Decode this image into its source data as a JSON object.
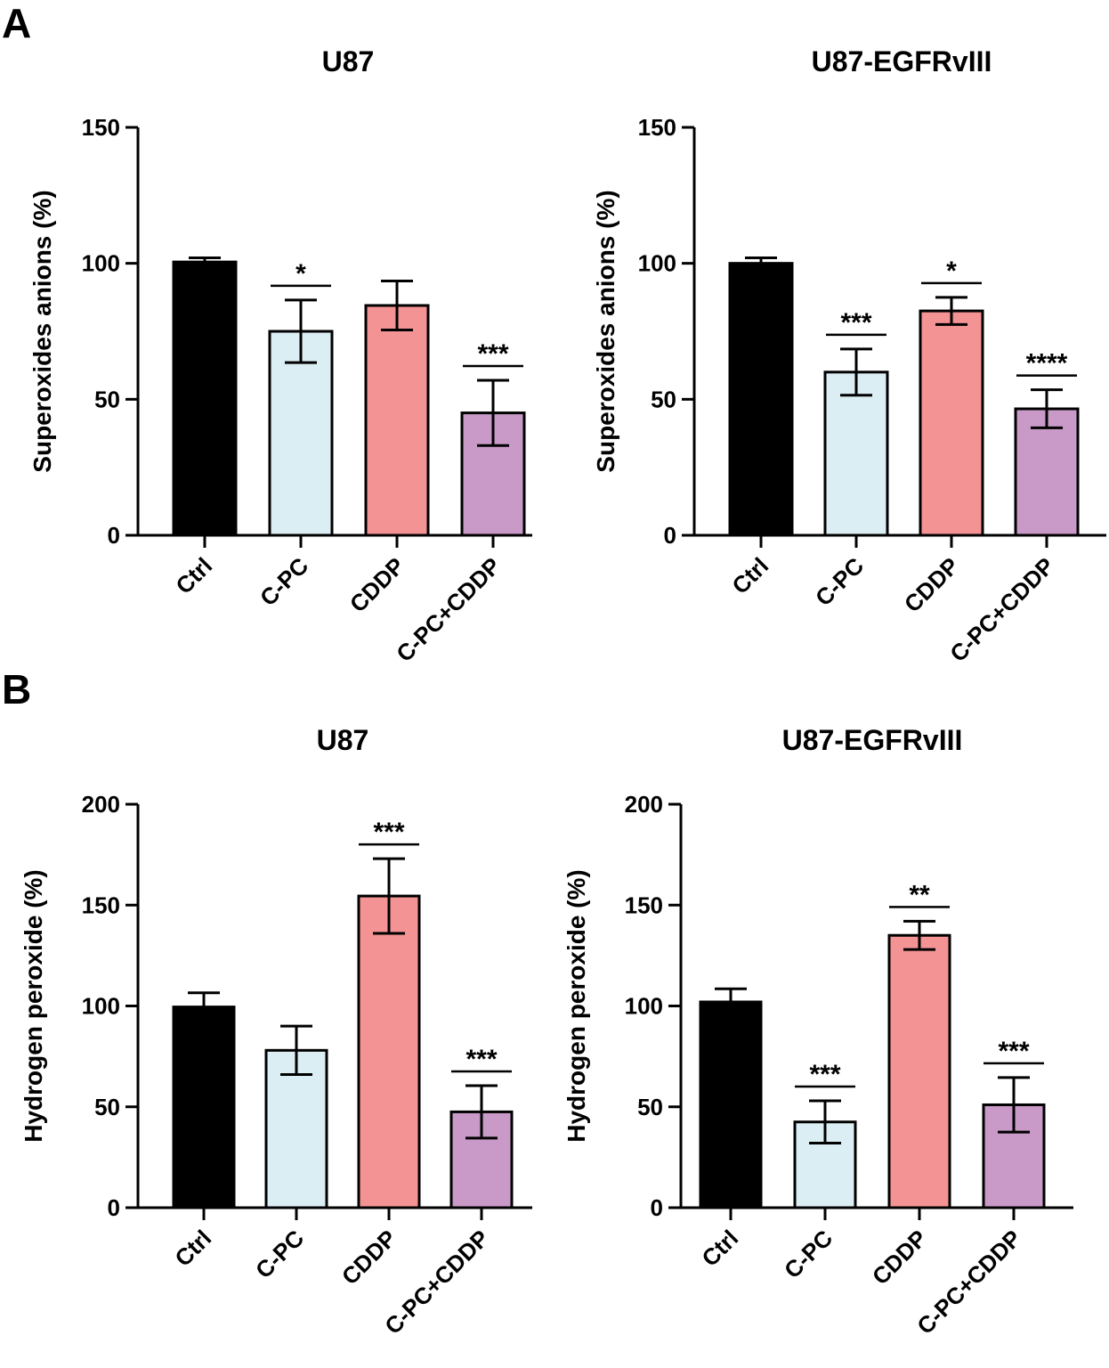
{
  "panels": [
    {
      "letter": "A"
    },
    {
      "letter": "B"
    }
  ],
  "colors": {
    "Ctrl": "#000000",
    "C-PC": "#dbeef3",
    "CDDP": "#f39393",
    "C-PC+CDDP": "#c99ac8",
    "stroke": "#000000"
  },
  "chart_data": [
    {
      "type": "bar",
      "panel": "A",
      "title": "U87",
      "xlabel": "",
      "ylabel": "Superoxides anions (%)",
      "ylim": [
        0,
        150
      ],
      "yticks": [
        0,
        50,
        100,
        150
      ],
      "categories": [
        "Ctrl",
        "C-PC",
        "CDDP",
        "C-PC+CDDP"
      ],
      "values": [
        100.5,
        75,
        84.5,
        45
      ],
      "errors": [
        1.5,
        11.5,
        9,
        12
      ],
      "significance": [
        "",
        "*",
        "",
        "***"
      ]
    },
    {
      "type": "bar",
      "panel": "A",
      "title": "U87-EGFRvIII",
      "xlabel": "",
      "ylabel": "Superoxides anions (%)",
      "ylim": [
        0,
        150
      ],
      "yticks": [
        0,
        50,
        100,
        150
      ],
      "categories": [
        "Ctrl",
        "C-PC",
        "CDDP",
        "C-PC+CDDP"
      ],
      "values": [
        100,
        60,
        82.5,
        46.5
      ],
      "errors": [
        2,
        8.5,
        5,
        7
      ],
      "significance": [
        "",
        "***",
        "*",
        "****"
      ]
    },
    {
      "type": "bar",
      "panel": "B",
      "title": "U87",
      "xlabel": "",
      "ylabel": "Hydrogen peroxide (%)",
      "ylim": [
        0,
        200
      ],
      "yticks": [
        0,
        50,
        100,
        150,
        200
      ],
      "categories": [
        "Ctrl",
        "C-PC",
        "CDDP",
        "C-PC+CDDP"
      ],
      "values": [
        99.5,
        78,
        154.5,
        47.5
      ],
      "errors": [
        7,
        12,
        18.5,
        13
      ],
      "significance": [
        "",
        "",
        "***",
        "***"
      ]
    },
    {
      "type": "bar",
      "panel": "B",
      "title": "U87-EGFRvIII",
      "xlabel": "",
      "ylabel": "Hydrogen peroxide (%)",
      "ylim": [
        0,
        200
      ],
      "yticks": [
        0,
        50,
        100,
        150,
        200
      ],
      "categories": [
        "Ctrl",
        "C-PC",
        "CDDP",
        "C-PC+CDDP"
      ],
      "values": [
        102,
        42.5,
        135,
        51
      ],
      "errors": [
        6.5,
        10.5,
        7,
        13.5
      ],
      "significance": [
        "",
        "***",
        "**",
        "***"
      ]
    }
  ]
}
